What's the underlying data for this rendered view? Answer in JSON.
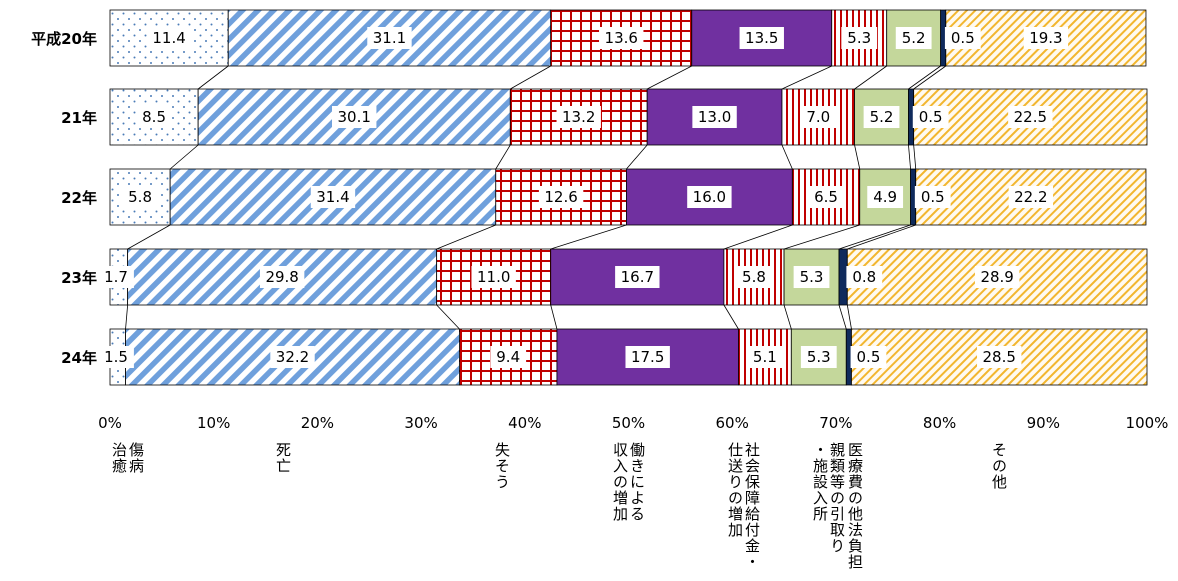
{
  "chart_data": {
    "type": "bar",
    "stacked": true,
    "orientation": "horizontal",
    "percent": true,
    "categories": [
      "平成20年",
      "21年",
      "22年",
      "23年",
      "24年"
    ],
    "series": [
      {
        "name": "傷病治癒",
        "values": [
          11.4,
          8.5,
          5.8,
          1.7,
          1.5
        ],
        "color": "#e8eef8",
        "pattern": "dots"
      },
      {
        "name": "死亡",
        "values": [
          31.1,
          30.1,
          31.4,
          29.8,
          32.2
        ],
        "color": "#6fa0dc",
        "pattern": "diagonal-stripes"
      },
      {
        "name": "失そう",
        "values": [
          13.6,
          13.2,
          12.6,
          11.0,
          9.4
        ],
        "color": "#c00000",
        "pattern": "grid"
      },
      {
        "name": "働きによる収入の増加",
        "values": [
          13.5,
          13.0,
          16.0,
          16.7,
          17.5
        ],
        "color": "#7030a0",
        "pattern": "solid"
      },
      {
        "name": "社会保障給付金・仕送りの増加",
        "values": [
          5.3,
          7.0,
          6.5,
          5.8,
          5.1
        ],
        "color": "#c00000",
        "pattern": "vertical-lines"
      },
      {
        "name": "親類等の引取り・施設入所",
        "values": [
          5.2,
          5.2,
          4.9,
          5.3,
          5.3
        ],
        "color": "#c4d79b",
        "pattern": "solid"
      },
      {
        "name": "医療費の他法負担",
        "values": [
          0.5,
          0.5,
          0.5,
          0.8,
          0.5
        ],
        "color": "#0f2a5c",
        "pattern": "solid"
      },
      {
        "name": "その他",
        "values": [
          19.3,
          22.5,
          22.2,
          28.9,
          28.5
        ],
        "color": "#f5c542",
        "pattern": "diagonal-hatch"
      }
    ],
    "x_ticks": [
      "0%",
      "10%",
      "20%",
      "30%",
      "40%",
      "50%",
      "60%",
      "70%",
      "80%",
      "90%",
      "100%"
    ],
    "xlim": [
      0,
      100
    ],
    "legend": "bottom",
    "series_connector_lines": true
  },
  "axis_label_texts": [
    "傷病\n治癒",
    "死亡",
    "失そう",
    "働きによる\n収入の増加",
    "社会保障給付金・\n仕送りの増加",
    "親類等の引取り\n・施設入所",
    "医療費の他法負担",
    "その他"
  ]
}
